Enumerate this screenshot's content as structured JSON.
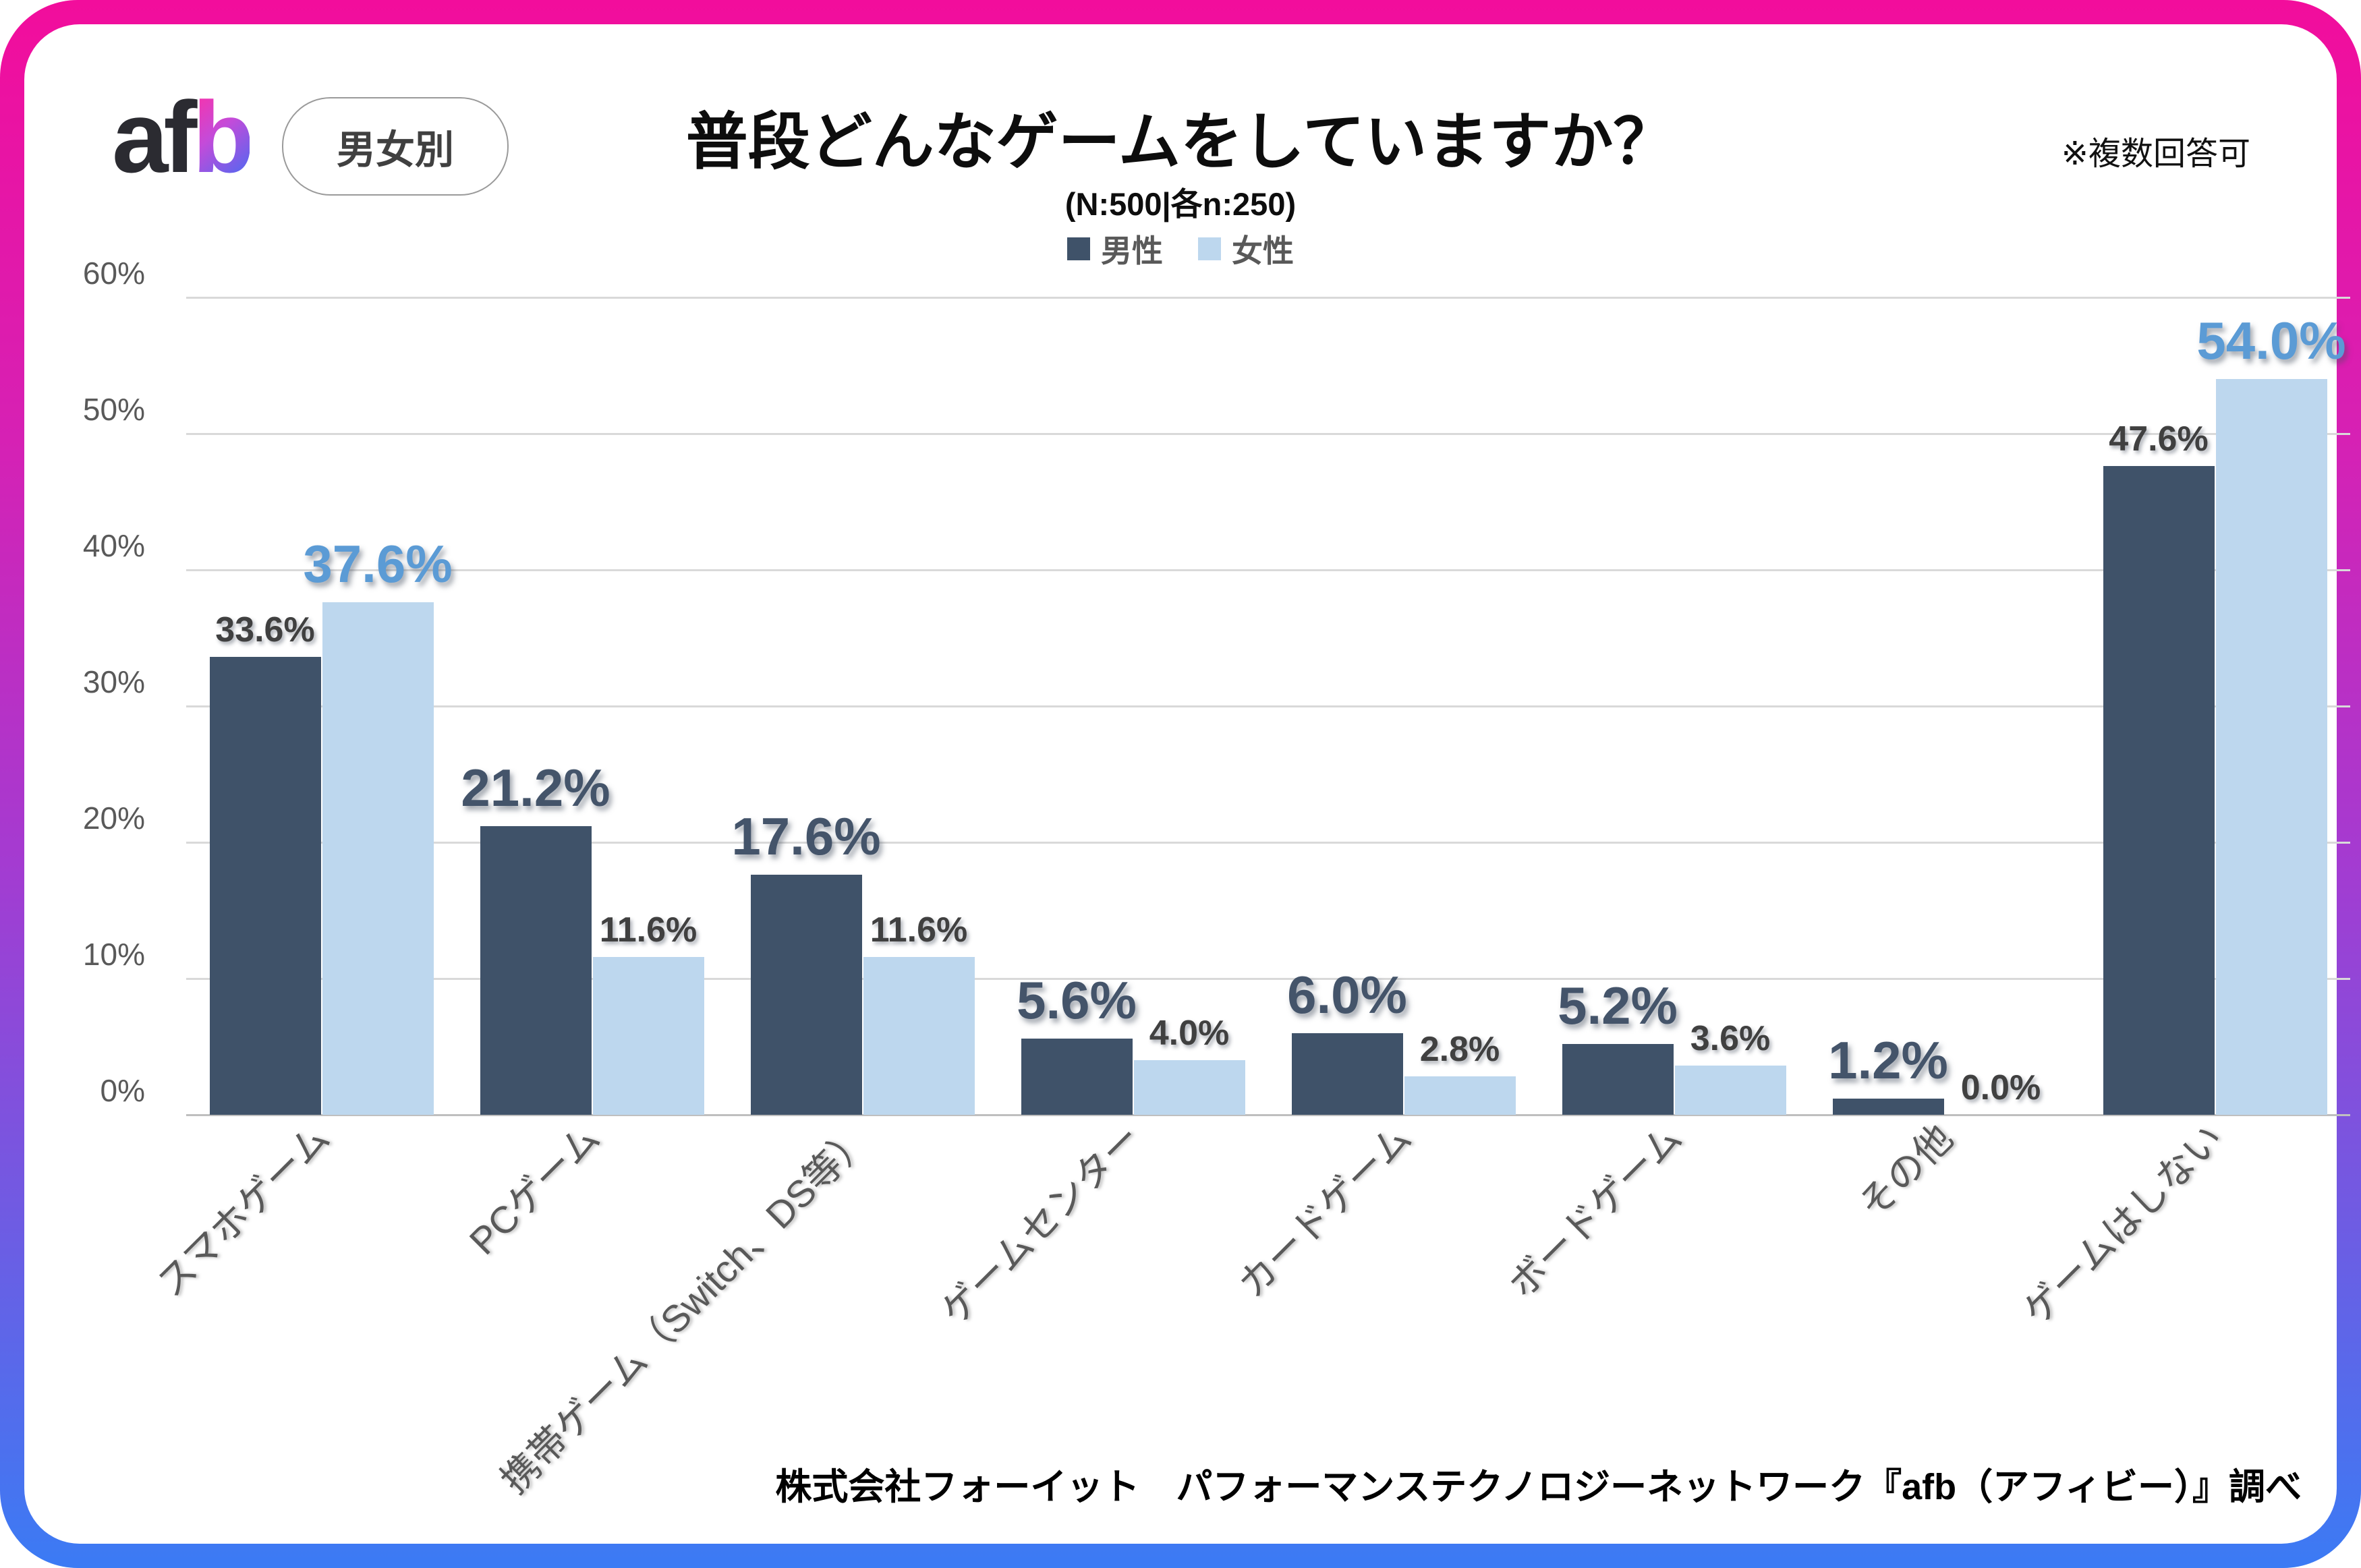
{
  "frame": {
    "border_gradient_top": "#F20D9C",
    "border_gradient_mid": "#A43BD1",
    "border_gradient_bottom": "#3B7BF4"
  },
  "logo": {
    "part_dark": "af",
    "part_gradient": "b"
  },
  "badge": {
    "label": "男女別"
  },
  "note": {
    "text": "※複数回答可"
  },
  "chart_data": {
    "type": "bar",
    "title": "普段どんなゲームをしていますか？",
    "subtitle": "(N:500|各n:250)",
    "legend_position": "top",
    "grid": true,
    "ylim": [
      0,
      60
    ],
    "ytick_labels": [
      "0%",
      "10%",
      "20%",
      "30%",
      "40%",
      "50%",
      "60%"
    ],
    "categories": [
      "スマホゲーム",
      "PCゲーム",
      "携帯ゲーム（Switch、DS等）",
      "ゲームセンター",
      "カードゲーム",
      "ボードゲーム",
      "その他",
      "ゲームはしない"
    ],
    "series": [
      {
        "name": "男性",
        "color": "#3F5269",
        "emphasis_color": "#44546A",
        "values": [
          33.6,
          21.2,
          17.6,
          5.6,
          6.0,
          5.2,
          1.2,
          47.6
        ]
      },
      {
        "name": "女性",
        "color": "#BDD7EE",
        "emphasis_color": "#5B9BD5",
        "values": [
          37.6,
          11.6,
          11.6,
          4.0,
          2.8,
          3.6,
          0.0,
          54.0
        ]
      }
    ],
    "label_format": "one_decimal_percent",
    "muted_label_color": "#404040",
    "gridline_color": "#D9D9D9"
  },
  "footer": {
    "source": "株式会社フォーイット　パフォーマンステクノロジーネットワーク『afb（アフィビー）』調べ"
  }
}
